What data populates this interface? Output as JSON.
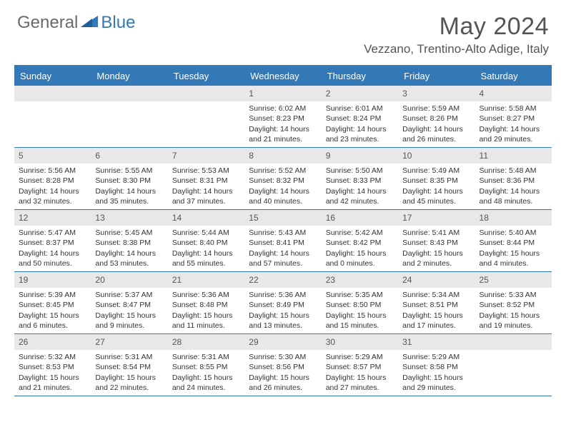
{
  "logo": {
    "general": "General",
    "blue": "Blue"
  },
  "title": "May 2024",
  "location": "Vezzano, Trentino-Alto Adige, Italy",
  "colors": {
    "header_bg": "#3379b7",
    "header_text": "#ffffff",
    "daynum_bg": "#e8e8e8",
    "text": "#333333",
    "title_text": "#555555",
    "border": "#3379b7"
  },
  "day_headers": [
    "Sunday",
    "Monday",
    "Tuesday",
    "Wednesday",
    "Thursday",
    "Friday",
    "Saturday"
  ],
  "weeks": [
    [
      {
        "n": "",
        "sr": "",
        "ss": "",
        "dl": ""
      },
      {
        "n": "",
        "sr": "",
        "ss": "",
        "dl": ""
      },
      {
        "n": "",
        "sr": "",
        "ss": "",
        "dl": ""
      },
      {
        "n": "1",
        "sr": "Sunrise: 6:02 AM",
        "ss": "Sunset: 8:23 PM",
        "dl": "Daylight: 14 hours and 21 minutes."
      },
      {
        "n": "2",
        "sr": "Sunrise: 6:01 AM",
        "ss": "Sunset: 8:24 PM",
        "dl": "Daylight: 14 hours and 23 minutes."
      },
      {
        "n": "3",
        "sr": "Sunrise: 5:59 AM",
        "ss": "Sunset: 8:26 PM",
        "dl": "Daylight: 14 hours and 26 minutes."
      },
      {
        "n": "4",
        "sr": "Sunrise: 5:58 AM",
        "ss": "Sunset: 8:27 PM",
        "dl": "Daylight: 14 hours and 29 minutes."
      }
    ],
    [
      {
        "n": "5",
        "sr": "Sunrise: 5:56 AM",
        "ss": "Sunset: 8:28 PM",
        "dl": "Daylight: 14 hours and 32 minutes."
      },
      {
        "n": "6",
        "sr": "Sunrise: 5:55 AM",
        "ss": "Sunset: 8:30 PM",
        "dl": "Daylight: 14 hours and 35 minutes."
      },
      {
        "n": "7",
        "sr": "Sunrise: 5:53 AM",
        "ss": "Sunset: 8:31 PM",
        "dl": "Daylight: 14 hours and 37 minutes."
      },
      {
        "n": "8",
        "sr": "Sunrise: 5:52 AM",
        "ss": "Sunset: 8:32 PM",
        "dl": "Daylight: 14 hours and 40 minutes."
      },
      {
        "n": "9",
        "sr": "Sunrise: 5:50 AM",
        "ss": "Sunset: 8:33 PM",
        "dl": "Daylight: 14 hours and 42 minutes."
      },
      {
        "n": "10",
        "sr": "Sunrise: 5:49 AM",
        "ss": "Sunset: 8:35 PM",
        "dl": "Daylight: 14 hours and 45 minutes."
      },
      {
        "n": "11",
        "sr": "Sunrise: 5:48 AM",
        "ss": "Sunset: 8:36 PM",
        "dl": "Daylight: 14 hours and 48 minutes."
      }
    ],
    [
      {
        "n": "12",
        "sr": "Sunrise: 5:47 AM",
        "ss": "Sunset: 8:37 PM",
        "dl": "Daylight: 14 hours and 50 minutes."
      },
      {
        "n": "13",
        "sr": "Sunrise: 5:45 AM",
        "ss": "Sunset: 8:38 PM",
        "dl": "Daylight: 14 hours and 53 minutes."
      },
      {
        "n": "14",
        "sr": "Sunrise: 5:44 AM",
        "ss": "Sunset: 8:40 PM",
        "dl": "Daylight: 14 hours and 55 minutes."
      },
      {
        "n": "15",
        "sr": "Sunrise: 5:43 AM",
        "ss": "Sunset: 8:41 PM",
        "dl": "Daylight: 14 hours and 57 minutes."
      },
      {
        "n": "16",
        "sr": "Sunrise: 5:42 AM",
        "ss": "Sunset: 8:42 PM",
        "dl": "Daylight: 15 hours and 0 minutes."
      },
      {
        "n": "17",
        "sr": "Sunrise: 5:41 AM",
        "ss": "Sunset: 8:43 PM",
        "dl": "Daylight: 15 hours and 2 minutes."
      },
      {
        "n": "18",
        "sr": "Sunrise: 5:40 AM",
        "ss": "Sunset: 8:44 PM",
        "dl": "Daylight: 15 hours and 4 minutes."
      }
    ],
    [
      {
        "n": "19",
        "sr": "Sunrise: 5:39 AM",
        "ss": "Sunset: 8:45 PM",
        "dl": "Daylight: 15 hours and 6 minutes."
      },
      {
        "n": "20",
        "sr": "Sunrise: 5:37 AM",
        "ss": "Sunset: 8:47 PM",
        "dl": "Daylight: 15 hours and 9 minutes."
      },
      {
        "n": "21",
        "sr": "Sunrise: 5:36 AM",
        "ss": "Sunset: 8:48 PM",
        "dl": "Daylight: 15 hours and 11 minutes."
      },
      {
        "n": "22",
        "sr": "Sunrise: 5:36 AM",
        "ss": "Sunset: 8:49 PM",
        "dl": "Daylight: 15 hours and 13 minutes."
      },
      {
        "n": "23",
        "sr": "Sunrise: 5:35 AM",
        "ss": "Sunset: 8:50 PM",
        "dl": "Daylight: 15 hours and 15 minutes."
      },
      {
        "n": "24",
        "sr": "Sunrise: 5:34 AM",
        "ss": "Sunset: 8:51 PM",
        "dl": "Daylight: 15 hours and 17 minutes."
      },
      {
        "n": "25",
        "sr": "Sunrise: 5:33 AM",
        "ss": "Sunset: 8:52 PM",
        "dl": "Daylight: 15 hours and 19 minutes."
      }
    ],
    [
      {
        "n": "26",
        "sr": "Sunrise: 5:32 AM",
        "ss": "Sunset: 8:53 PM",
        "dl": "Daylight: 15 hours and 21 minutes."
      },
      {
        "n": "27",
        "sr": "Sunrise: 5:31 AM",
        "ss": "Sunset: 8:54 PM",
        "dl": "Daylight: 15 hours and 22 minutes."
      },
      {
        "n": "28",
        "sr": "Sunrise: 5:31 AM",
        "ss": "Sunset: 8:55 PM",
        "dl": "Daylight: 15 hours and 24 minutes."
      },
      {
        "n": "29",
        "sr": "Sunrise: 5:30 AM",
        "ss": "Sunset: 8:56 PM",
        "dl": "Daylight: 15 hours and 26 minutes."
      },
      {
        "n": "30",
        "sr": "Sunrise: 5:29 AM",
        "ss": "Sunset: 8:57 PM",
        "dl": "Daylight: 15 hours and 27 minutes."
      },
      {
        "n": "31",
        "sr": "Sunrise: 5:29 AM",
        "ss": "Sunset: 8:58 PM",
        "dl": "Daylight: 15 hours and 29 minutes."
      },
      {
        "n": "",
        "sr": "",
        "ss": "",
        "dl": ""
      }
    ]
  ]
}
